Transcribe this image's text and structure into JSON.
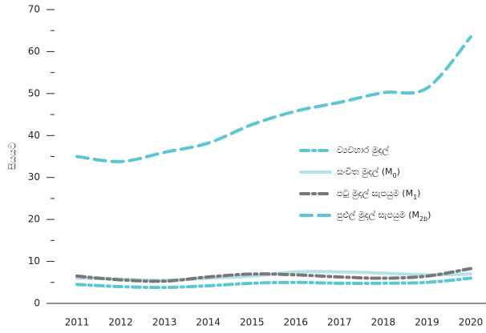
{
  "chart_data": {
    "type": "line",
    "y_label": "සියයට",
    "x": [
      2011,
      2012,
      2013,
      2014,
      2015,
      2016,
      2017,
      2018,
      2019,
      2020
    ],
    "xlim": [
      2011,
      2020
    ],
    "xticks": [
      2011,
      2012,
      2013,
      2014,
      2015,
      2016,
      2017,
      2018,
      2019,
      2020
    ],
    "ylim": [
      0,
      70
    ],
    "yticks": [
      0,
      10,
      20,
      30,
      40,
      50,
      60,
      70
    ],
    "legend": "right",
    "series": [
      {
        "name": "ව්‍යවහාර මුදල්",
        "color": "#5cc7d0",
        "style": "dash-dot",
        "values": [
          4.5,
          4.0,
          3.8,
          4.2,
          4.8,
          5.0,
          4.8,
          4.8,
          5.0,
          6.0
        ]
      },
      {
        "name": "සංචිත මුදල් (M0)",
        "color": "#b5e2ea",
        "style": "solid",
        "values": [
          6.0,
          5.8,
          5.5,
          6.0,
          6.5,
          7.5,
          7.5,
          7.2,
          6.8,
          7.0
        ]
      },
      {
        "name": "පටු මුදල් සැපයුම (M1)",
        "color": "#787878",
        "style": "dash-dot",
        "values": [
          6.5,
          5.6,
          5.3,
          6.3,
          7.0,
          6.8,
          6.3,
          6.0,
          6.5,
          8.3
        ]
      },
      {
        "name": "පුළුල් මුදල් සැපයුම (M2b)",
        "color": "#5cc7d0",
        "style": "dash",
        "values": [
          35.0,
          33.8,
          36.0,
          38.2,
          42.6,
          45.8,
          47.9,
          50.2,
          51.3,
          63.5
        ]
      }
    ]
  }
}
